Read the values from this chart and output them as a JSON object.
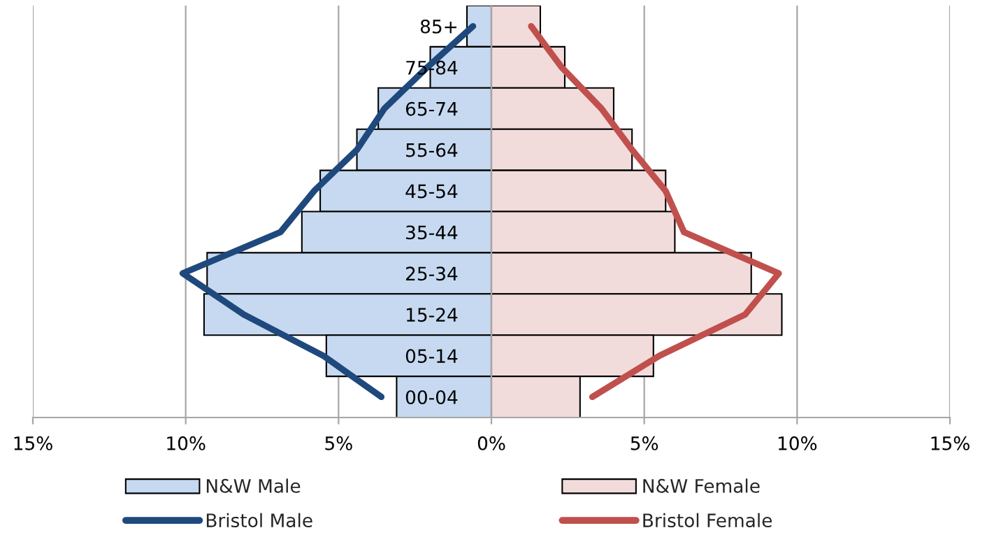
{
  "chart_data": {
    "type": "bar",
    "orientation": "horizontal",
    "stacked": true,
    "categories": [
      "85+",
      "75-84",
      "65-74",
      "55-64",
      "45-54",
      "35-44",
      "25-34",
      "15-24",
      "05-14",
      "00-04"
    ],
    "series": [
      {
        "name": "N&W Male",
        "color": "#c6d9f0",
        "values": [
          -0.8,
          -2.0,
          -3.7,
          -4.4,
          -5.6,
          -6.2,
          -9.3,
          -9.4,
          -5.4,
          -3.1
        ]
      },
      {
        "name": "N&W Female",
        "color": "#f2dcdb",
        "values": [
          1.6,
          2.4,
          4.0,
          4.6,
          5.7,
          6.0,
          8.5,
          9.5,
          5.3,
          2.9
        ]
      },
      {
        "name": "Bristol Male",
        "type": "line",
        "color": "#1f497d",
        "values": [
          -0.6,
          -2.1,
          -3.5,
          -4.4,
          -5.8,
          -6.9,
          -10.1,
          -8.1,
          -5.5,
          -3.6
        ]
      },
      {
        "name": "Bristol Female",
        "type": "line",
        "color": "#c0504d",
        "values": [
          1.3,
          2.3,
          3.6,
          4.6,
          5.7,
          6.3,
          9.4,
          8.3,
          5.5,
          3.3
        ]
      }
    ],
    "xlim": [
      -15,
      15
    ],
    "xticks": [
      {
        "value": -15,
        "label": "15%"
      },
      {
        "value": -10,
        "label": "10%"
      },
      {
        "value": -5,
        "label": "5%"
      },
      {
        "value": 0,
        "label": "0%"
      },
      {
        "value": 5,
        "label": "5%"
      },
      {
        "value": 10,
        "label": "10%"
      },
      {
        "value": 15,
        "label": "15%"
      }
    ],
    "grid": "x",
    "legend": "bottom"
  }
}
